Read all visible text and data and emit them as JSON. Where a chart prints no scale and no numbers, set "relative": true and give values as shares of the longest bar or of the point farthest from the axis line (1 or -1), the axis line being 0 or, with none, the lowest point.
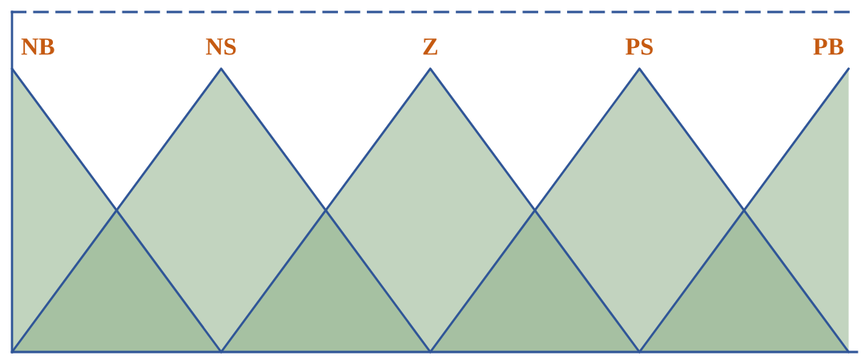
{
  "chart_data": {
    "type": "area",
    "relative": true,
    "legend": false,
    "categories": [
      null,
      null,
      null,
      null,
      null,
      null,
      null,
      null,
      null
    ],
    "series": [
      {
        "name": "NB",
        "color": "#8eb089",
        "values": [
          1,
          0.5,
          0,
          null,
          null,
          null,
          null,
          null,
          null
        ]
      },
      {
        "name": "NS",
        "color": "#8fb18a",
        "values": [
          0,
          0.5,
          1,
          0.5,
          0,
          null,
          null,
          null,
          null
        ]
      },
      {
        "name": "Z",
        "color": "#90b08a",
        "values": [
          null,
          null,
          0,
          0.5,
          1,
          0.5,
          0,
          null,
          null
        ]
      },
      {
        "name": "PS",
        "color": "#8faf8a",
        "values": [
          null,
          null,
          null,
          null,
          0,
          0.5,
          1,
          0.5,
          0
        ]
      },
      {
        "name": "PB",
        "color": "#8fb08b",
        "values": [
          null,
          null,
          null,
          null,
          null,
          null,
          0,
          0.5,
          1
        ]
      }
    ]
  }
}
